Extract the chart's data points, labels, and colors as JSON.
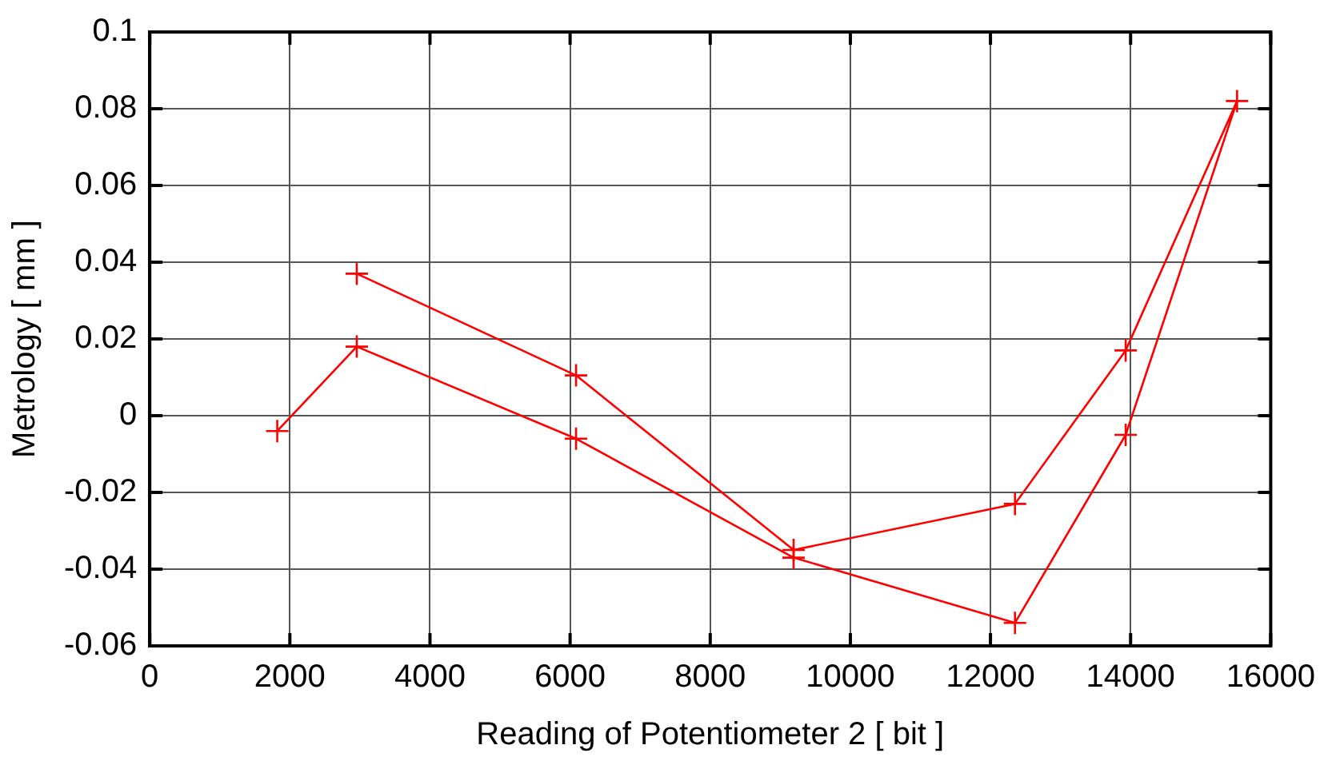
{
  "chart_data": {
    "type": "line",
    "xlabel": "Reading of Potentiometer 2 [ bit ]",
    "ylabel": "Metrology [ mm ]",
    "x": [
      1820,
      2955,
      6085,
      9190,
      12350,
      13930,
      15520,
      13930,
      12350,
      9190,
      6085,
      2955
    ],
    "series": [
      {
        "color": "#ff0000",
        "values": [
          -0.004,
          0.018,
          -0.006,
          -0.037,
          -0.054,
          -0.005,
          0.082,
          0.017,
          -0.023,
          -0.035,
          0.0105,
          0.037
        ]
      }
    ],
    "xlim": [
      0,
      16000
    ],
    "xticks": [
      0,
      2000,
      4000,
      6000,
      8000,
      10000,
      12000,
      14000,
      16000
    ],
    "ylim": [
      -0.06,
      0.1
    ],
    "yticks": [
      -0.06,
      -0.04,
      -0.02,
      0,
      0.02,
      0.04,
      0.06,
      0.08,
      0.1
    ],
    "grid": true,
    "marker": "cross",
    "line_style": "solid",
    "legend": false
  }
}
